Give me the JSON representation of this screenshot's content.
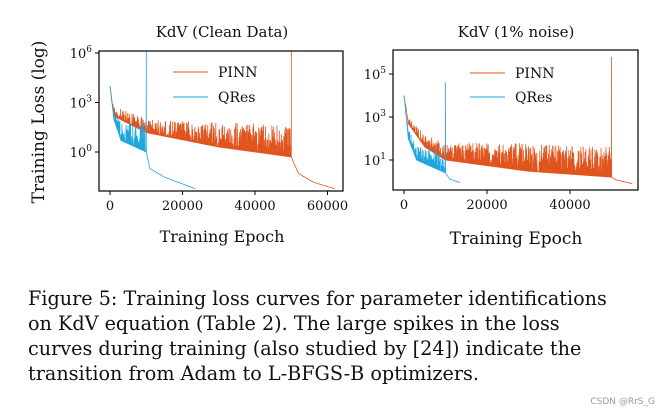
{
  "chart_data": [
    {
      "type": "line",
      "title": "KdV (Clean Data)",
      "xlabel": "Training Epoch",
      "ylabel": "Training Loss (log)",
      "yscale": "log",
      "xlim": [
        -3000,
        64000
      ],
      "ylim": [
        0.004,
        1300000
      ],
      "xticks": [
        0,
        20000,
        40000,
        60000
      ],
      "yticks": [
        {
          "base": "10",
          "exp": "0",
          "value": 1
        },
        {
          "base": "10",
          "exp": "3",
          "value": 1000
        },
        {
          "base": "10",
          "exp": "6",
          "value": 1000000
        }
      ],
      "grid": false,
      "legend": "top-center",
      "series": [
        {
          "name": "PINN",
          "color": "#e1541e",
          "adam_lower": [
            [
              0,
              10000
            ],
            [
              1000,
              150
            ],
            [
              10000,
              15
            ],
            [
              30000,
              2
            ],
            [
              50000,
              0.5
            ]
          ],
          "adam_upper": [
            [
              0,
              10000
            ],
            [
              1000,
              600
            ],
            [
              10000,
              100
            ],
            [
              30000,
              60
            ],
            [
              50000,
              40
            ]
          ],
          "spike": [
            50000,
            2500000
          ],
          "lbfgs": [
            [
              50000,
              0.5
            ],
            [
              52000,
              0.05
            ],
            [
              56000,
              0.015
            ],
            [
              62000,
              0.006
            ]
          ]
        },
        {
          "name": "QRes",
          "color": "#1ea7de",
          "adam_lower": [
            [
              0,
              10000
            ],
            [
              1000,
              100
            ],
            [
              3000,
              5
            ],
            [
              10000,
              1
            ]
          ],
          "adam_upper": [
            [
              0,
              10000
            ],
            [
              1000,
              300
            ],
            [
              3000,
              60
            ],
            [
              10000,
              60
            ]
          ],
          "spike": [
            10000,
            5000000
          ],
          "lbfgs": [
            [
              10000,
              1
            ],
            [
              11000,
              0.1
            ],
            [
              15000,
              0.03
            ],
            [
              23500,
              0.006
            ]
          ]
        }
      ]
    },
    {
      "type": "line",
      "title": "KdV (1% noise)",
      "xlabel": "Training Epoch",
      "ylabel": "",
      "yscale": "log",
      "xlim": [
        -2500,
        56000
      ],
      "ylim": [
        0.4,
        1300000
      ],
      "xticks": [
        0,
        20000,
        40000
      ],
      "yticks": [
        {
          "base": "10",
          "exp": "1",
          "value": 10
        },
        {
          "base": "10",
          "exp": "3",
          "value": 1000
        },
        {
          "base": "10",
          "exp": "5",
          "value": 100000
        }
      ],
      "grid": false,
      "legend": "top-center",
      "series": [
        {
          "name": "PINN",
          "color": "#e1541e",
          "adam_lower": [
            [
              0,
              10000
            ],
            [
              1000,
              500
            ],
            [
              5000,
              40
            ],
            [
              10000,
              10
            ],
            [
              30000,
              3
            ],
            [
              50000,
              1.6
            ]
          ],
          "adam_upper": [
            [
              0,
              10000
            ],
            [
              1000,
              900
            ],
            [
              5000,
              150
            ],
            [
              10000,
              60
            ],
            [
              30000,
              60
            ],
            [
              50000,
              40
            ]
          ],
          "spike": [
            50000,
            600000
          ],
          "lbfgs": [
            [
              50000,
              1.6
            ],
            [
              51000,
              1.2
            ],
            [
              55000,
              0.8
            ]
          ]
        },
        {
          "name": "QRes",
          "color": "#1ea7de",
          "adam_lower": [
            [
              0,
              10000
            ],
            [
              1000,
              100
            ],
            [
              3000,
              10
            ],
            [
              10000,
              2.5
            ]
          ],
          "adam_upper": [
            [
              0,
              10000
            ],
            [
              1000,
              300
            ],
            [
              3000,
              40
            ],
            [
              10000,
              30
            ]
          ],
          "spike": [
            10000,
            40000
          ],
          "lbfgs": [
            [
              10000,
              2.5
            ],
            [
              11000,
              1.3
            ],
            [
              13500,
              0.9
            ]
          ]
        }
      ]
    }
  ],
  "caption": {
    "lines": [
      "Figure 5: Training loss curves for parameter identifications",
      "on KdV equation (Table 2).  The large spikes in the loss",
      "curves during training (also studied by [24]) indicate the",
      "transition from Adam to L-BFGS-B optimizers."
    ]
  },
  "watermark": "CSDN @RrS_G"
}
